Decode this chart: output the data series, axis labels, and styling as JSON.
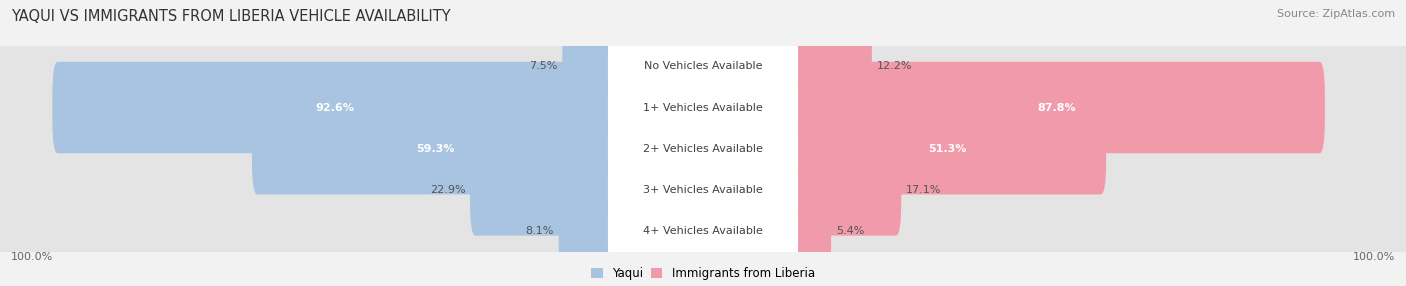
{
  "title": "YAQUI VS IMMIGRANTS FROM LIBERIA VEHICLE AVAILABILITY",
  "source": "Source: ZipAtlas.com",
  "categories": [
    "No Vehicles Available",
    "1+ Vehicles Available",
    "2+ Vehicles Available",
    "3+ Vehicles Available",
    "4+ Vehicles Available"
  ],
  "yaqui_values": [
    7.5,
    92.6,
    59.3,
    22.9,
    8.1
  ],
  "liberia_values": [
    12.2,
    87.8,
    51.3,
    17.1,
    5.4
  ],
  "yaqui_color": "#a8c4e0",
  "liberia_color": "#f09aaa",
  "bg_color": "#f2f2f2",
  "row_bg_color": "#e4e4e4",
  "label_bg": "#ffffff",
  "max_val": 100.0,
  "title_fontsize": 10.5,
  "label_fontsize": 8.0,
  "value_fontsize": 8.0,
  "legend_fontsize": 8.5,
  "source_fontsize": 8.0
}
